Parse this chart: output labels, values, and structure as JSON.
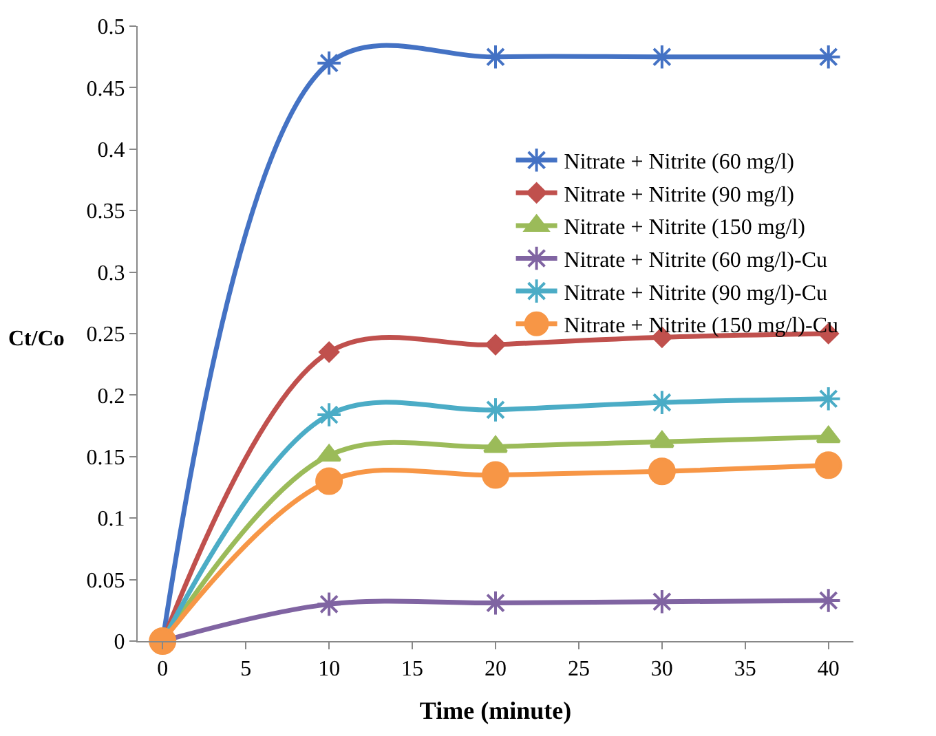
{
  "chart_data": {
    "type": "line",
    "xlabel": "Time (minute)",
    "ylabel": "Ct/Co",
    "x": [
      0,
      10,
      20,
      30,
      40
    ],
    "series": [
      {
        "name": "Nitrate + Nitrite (60 mg/l)",
        "color": "#4472c4",
        "marker": "cross",
        "values": [
          0,
          0.47,
          0.475,
          0.475,
          0.475
        ]
      },
      {
        "name": "Nitrate + Nitrite (90 mg/l)",
        "color": "#c0504d",
        "marker": "diamond",
        "values": [
          0,
          0.235,
          0.241,
          0.247,
          0.25
        ]
      },
      {
        "name": "Nitrate + Nitrite (150 mg/l)",
        "color": "#9bbb59",
        "marker": "triangle",
        "values": [
          0,
          0.151,
          0.158,
          0.162,
          0.166
        ]
      },
      {
        "name": "Nitrate + Nitrite (60 mg/l)-Cu",
        "color": "#8064a2",
        "marker": "cross",
        "values": [
          0,
          0.03,
          0.031,
          0.032,
          0.033
        ]
      },
      {
        "name": "Nitrate + Nitrite (90 mg/l)-Cu",
        "color": "#4bacc6",
        "marker": "cross",
        "values": [
          0,
          0.184,
          0.188,
          0.194,
          0.197
        ]
      },
      {
        "name": "Nitrate + Nitrite (150 mg/l)-Cu",
        "color": "#f79646",
        "marker": "circle",
        "values": [
          0,
          0.13,
          0.135,
          0.138,
          0.143
        ]
      }
    ],
    "xlim": [
      -1.5,
      41.5
    ],
    "xticks": [
      0,
      5,
      10,
      15,
      20,
      25,
      30,
      35,
      40
    ],
    "ylim": [
      0,
      0.5
    ],
    "yticks": [
      0,
      0.05,
      0.1,
      0.15,
      0.2,
      0.25,
      0.3,
      0.35,
      0.4,
      0.45,
      0.5
    ],
    "legend": "top right"
  }
}
